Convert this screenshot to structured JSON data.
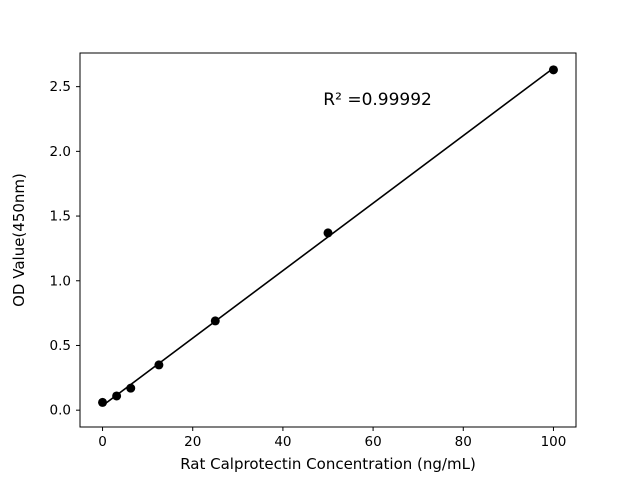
{
  "chart_data": {
    "type": "scatter",
    "title": "",
    "xlabel": "Rat Calprotectin Concentration (ng/mL)",
    "ylabel": "OD Value(450nm)",
    "x": [
      0,
      3.125,
      6.25,
      12.5,
      25,
      50,
      100
    ],
    "y": [
      0.06,
      0.11,
      0.17,
      0.35,
      0.69,
      1.37,
      2.63
    ],
    "x_ticks": [
      0,
      20,
      40,
      60,
      80,
      100
    ],
    "y_ticks": [
      0.0,
      0.5,
      1.0,
      1.5,
      2.0,
      2.5
    ],
    "xlim": [
      -5,
      105
    ],
    "ylim": [
      -0.13,
      2.76
    ],
    "annotation": "R² =0.99992",
    "grid": false,
    "has_fit_line": true,
    "legend": "none",
    "marker_color": "#000000",
    "line_color": "#000000",
    "background_color": "#ffffff"
  }
}
